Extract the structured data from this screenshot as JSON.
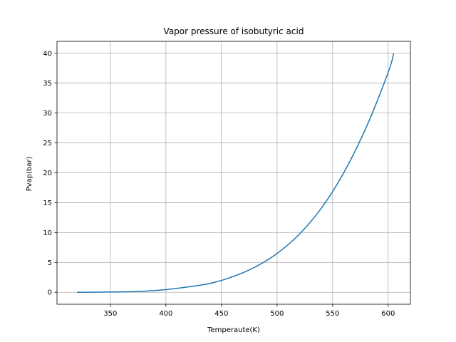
{
  "chart_data": {
    "type": "line",
    "title": "Vapor pressure of isobutyric acid",
    "xlabel": "Temperaute(K)",
    "ylabel": "Pvap(bar)",
    "xlim": [
      302,
      620
    ],
    "ylim": [
      -2,
      42
    ],
    "grid": true,
    "x_ticks": [
      350,
      400,
      450,
      500,
      550,
      600
    ],
    "y_ticks": [
      0,
      5,
      10,
      15,
      20,
      25,
      30,
      35,
      40
    ],
    "colors": {
      "line": "#1f77b4",
      "grid": "#b0b0b0",
      "axis": "#000000"
    },
    "series": [
      {
        "name": "Pvap",
        "x": [
          320,
          340,
          360,
          380,
          400,
          420,
          440,
          460,
          480,
          500,
          520,
          540,
          560,
          580,
          600,
          605
        ],
        "y": [
          0.0,
          0.03,
          0.07,
          0.18,
          0.45,
          0.9,
          1.5,
          2.6,
          4.2,
          6.5,
          9.7,
          14.1,
          20.0,
          27.5,
          36.8,
          40.0
        ]
      }
    ]
  }
}
